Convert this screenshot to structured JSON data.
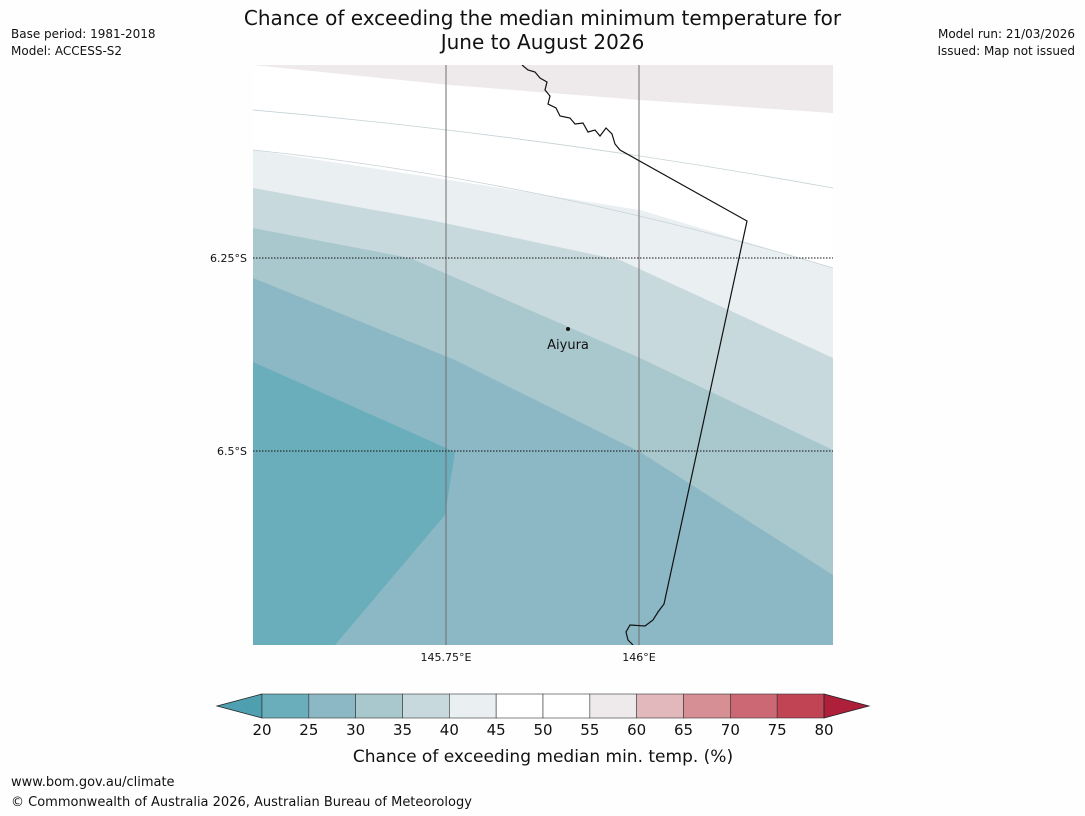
{
  "header": {
    "title_line1": "Chance of exceeding the median minimum temperature for",
    "title_line2": "June to August 2026",
    "base_period": "Base period: 1981-2018",
    "model": "Model: ACCESS-S2",
    "model_run": "Model run: 21/03/2026",
    "issued": "Issued: Map not issued"
  },
  "map": {
    "lat_labels": [
      "6.25°S",
      "6.5°S"
    ],
    "lon_labels": [
      "145.75°E",
      "146°E"
    ],
    "place": "Aiyura"
  },
  "legend": {
    "ticks": [
      "20",
      "25",
      "30",
      "35",
      "40",
      "45",
      "50",
      "55",
      "60",
      "65",
      "70",
      "75",
      "80"
    ],
    "label": "Chance of exceeding median min. temp. (%)",
    "colors": [
      "#4e9fb0",
      "#6aaebb",
      "#8bb8c4",
      "#a9c8cd",
      "#c8d9de",
      "#eaeff2",
      "#ffffff",
      "#ffffff",
      "#eeeaeb",
      "#e2b8bc",
      "#d68f95",
      "#cc6874",
      "#c14455",
      "#ae1f3a"
    ]
  },
  "footer": {
    "url": "www.bom.gov.au/climate",
    "copyright": "© Commonwealth of Australia 2026, Australian Bureau of Meteorology"
  }
}
